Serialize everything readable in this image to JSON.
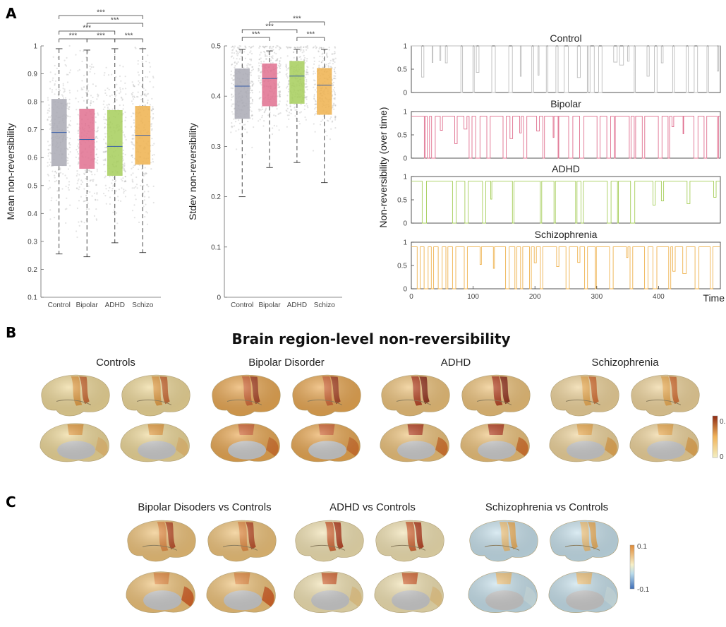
{
  "panels": {
    "a": "A",
    "b": "B",
    "c": "C"
  },
  "chart_data": [
    {
      "type": "box",
      "ylabel": "Mean non-reversibility",
      "ylim": [
        0.1,
        1.0
      ],
      "yticks": [
        "0.1",
        "0.2",
        "0.3",
        "0.4",
        "0.5",
        "0.6",
        "0.7",
        "0.8",
        "0.9",
        "1"
      ],
      "categories": [
        "Control",
        "Bipolar",
        "ADHD",
        "Schizo"
      ],
      "colors": [
        "#a9a9b4",
        "#e0708f",
        "#a6ce5a",
        "#efb24e"
      ],
      "boxes": [
        {
          "q1": 0.57,
          "median": 0.69,
          "q3": 0.81,
          "min": 0.255,
          "max": 0.99
        },
        {
          "q1": 0.56,
          "median": 0.665,
          "q3": 0.775,
          "min": 0.245,
          "max": 0.985
        },
        {
          "q1": 0.535,
          "median": 0.64,
          "q3": 0.77,
          "min": 0.295,
          "max": 0.99
        },
        {
          "q1": 0.575,
          "median": 0.68,
          "q3": 0.785,
          "min": 0.26,
          "max": 0.99
        }
      ],
      "significance": [
        {
          "pair": [
            "Control",
            "Schizo"
          ],
          "label": "***"
        },
        {
          "pair": [
            "Bipolar",
            "Schizo"
          ],
          "label": "***"
        },
        {
          "pair": [
            "Control",
            "ADHD"
          ],
          "label": "***"
        },
        {
          "pair": [
            "Control",
            "Bipolar"
          ],
          "label": "***"
        },
        {
          "pair": [
            "Bipolar",
            "ADHD"
          ],
          "label": "***"
        },
        {
          "pair": [
            "ADHD",
            "Schizo"
          ],
          "label": "***"
        }
      ]
    },
    {
      "type": "box",
      "ylabel": "Stdev non-reversibility",
      "ylim": [
        0,
        0.5
      ],
      "yticks": [
        "0",
        "0.1",
        "0.2",
        "0.3",
        "0.4",
        "0.5"
      ],
      "categories": [
        "Control",
        "Bipolar",
        "ADHD",
        "Schizo"
      ],
      "colors": [
        "#a9a9b4",
        "#e0708f",
        "#a6ce5a",
        "#efb24e"
      ],
      "boxes": [
        {
          "q1": 0.355,
          "median": 0.42,
          "q3": 0.455,
          "min": 0.2,
          "max": 0.493
        },
        {
          "q1": 0.38,
          "median": 0.435,
          "q3": 0.465,
          "min": 0.258,
          "max": 0.49
        },
        {
          "q1": 0.385,
          "median": 0.44,
          "q3": 0.47,
          "min": 0.268,
          "max": 0.493
        },
        {
          "q1": 0.363,
          "median": 0.422,
          "q3": 0.456,
          "min": 0.228,
          "max": 0.493
        }
      ],
      "significance": [
        {
          "pair": [
            "Bipolar",
            "Schizo"
          ],
          "label": "***"
        },
        {
          "pair": [
            "Control",
            "ADHD"
          ],
          "label": "***"
        },
        {
          "pair": [
            "Control",
            "Bipolar"
          ],
          "label": "***"
        },
        {
          "pair": [
            "ADHD",
            "Schizo"
          ],
          "label": "***"
        }
      ]
    },
    {
      "type": "line",
      "ylabel": "Non-reversibility (over time)",
      "xlabel": "Time",
      "xlim": [
        0,
        500
      ],
      "xticks": [
        "0",
        "100",
        "200",
        "300",
        "400"
      ],
      "yticks": [
        "0",
        "0.5",
        "1"
      ],
      "series": [
        {
          "name": "Control",
          "color": "#bdbdbd"
        },
        {
          "name": "Bipolar",
          "color": "#e0708f"
        },
        {
          "name": "ADHD",
          "color": "#a6ce5a"
        },
        {
          "name": "Schizophrenia",
          "color": "#efb24e"
        }
      ]
    }
  ],
  "brain_b": {
    "headline": "Brain region-level non-reversibility",
    "titles": [
      "Controls",
      "Bipolar Disorder",
      "ADHD",
      "Schizophrenia"
    ],
    "colorbar": {
      "max": "0.",
      "min": "0",
      "top": "#8e2a12",
      "bottom": "#f3efc2"
    }
  },
  "brain_c": {
    "titles": [
      "Bipolar Disoders vs Controls",
      "ADHD vs Controls",
      "Schizophrenia vs Controls"
    ],
    "colorbar": {
      "max": "0.1",
      "min": "-0.1",
      "top": "#e08a36",
      "bottom": "#3f6fb8"
    }
  }
}
